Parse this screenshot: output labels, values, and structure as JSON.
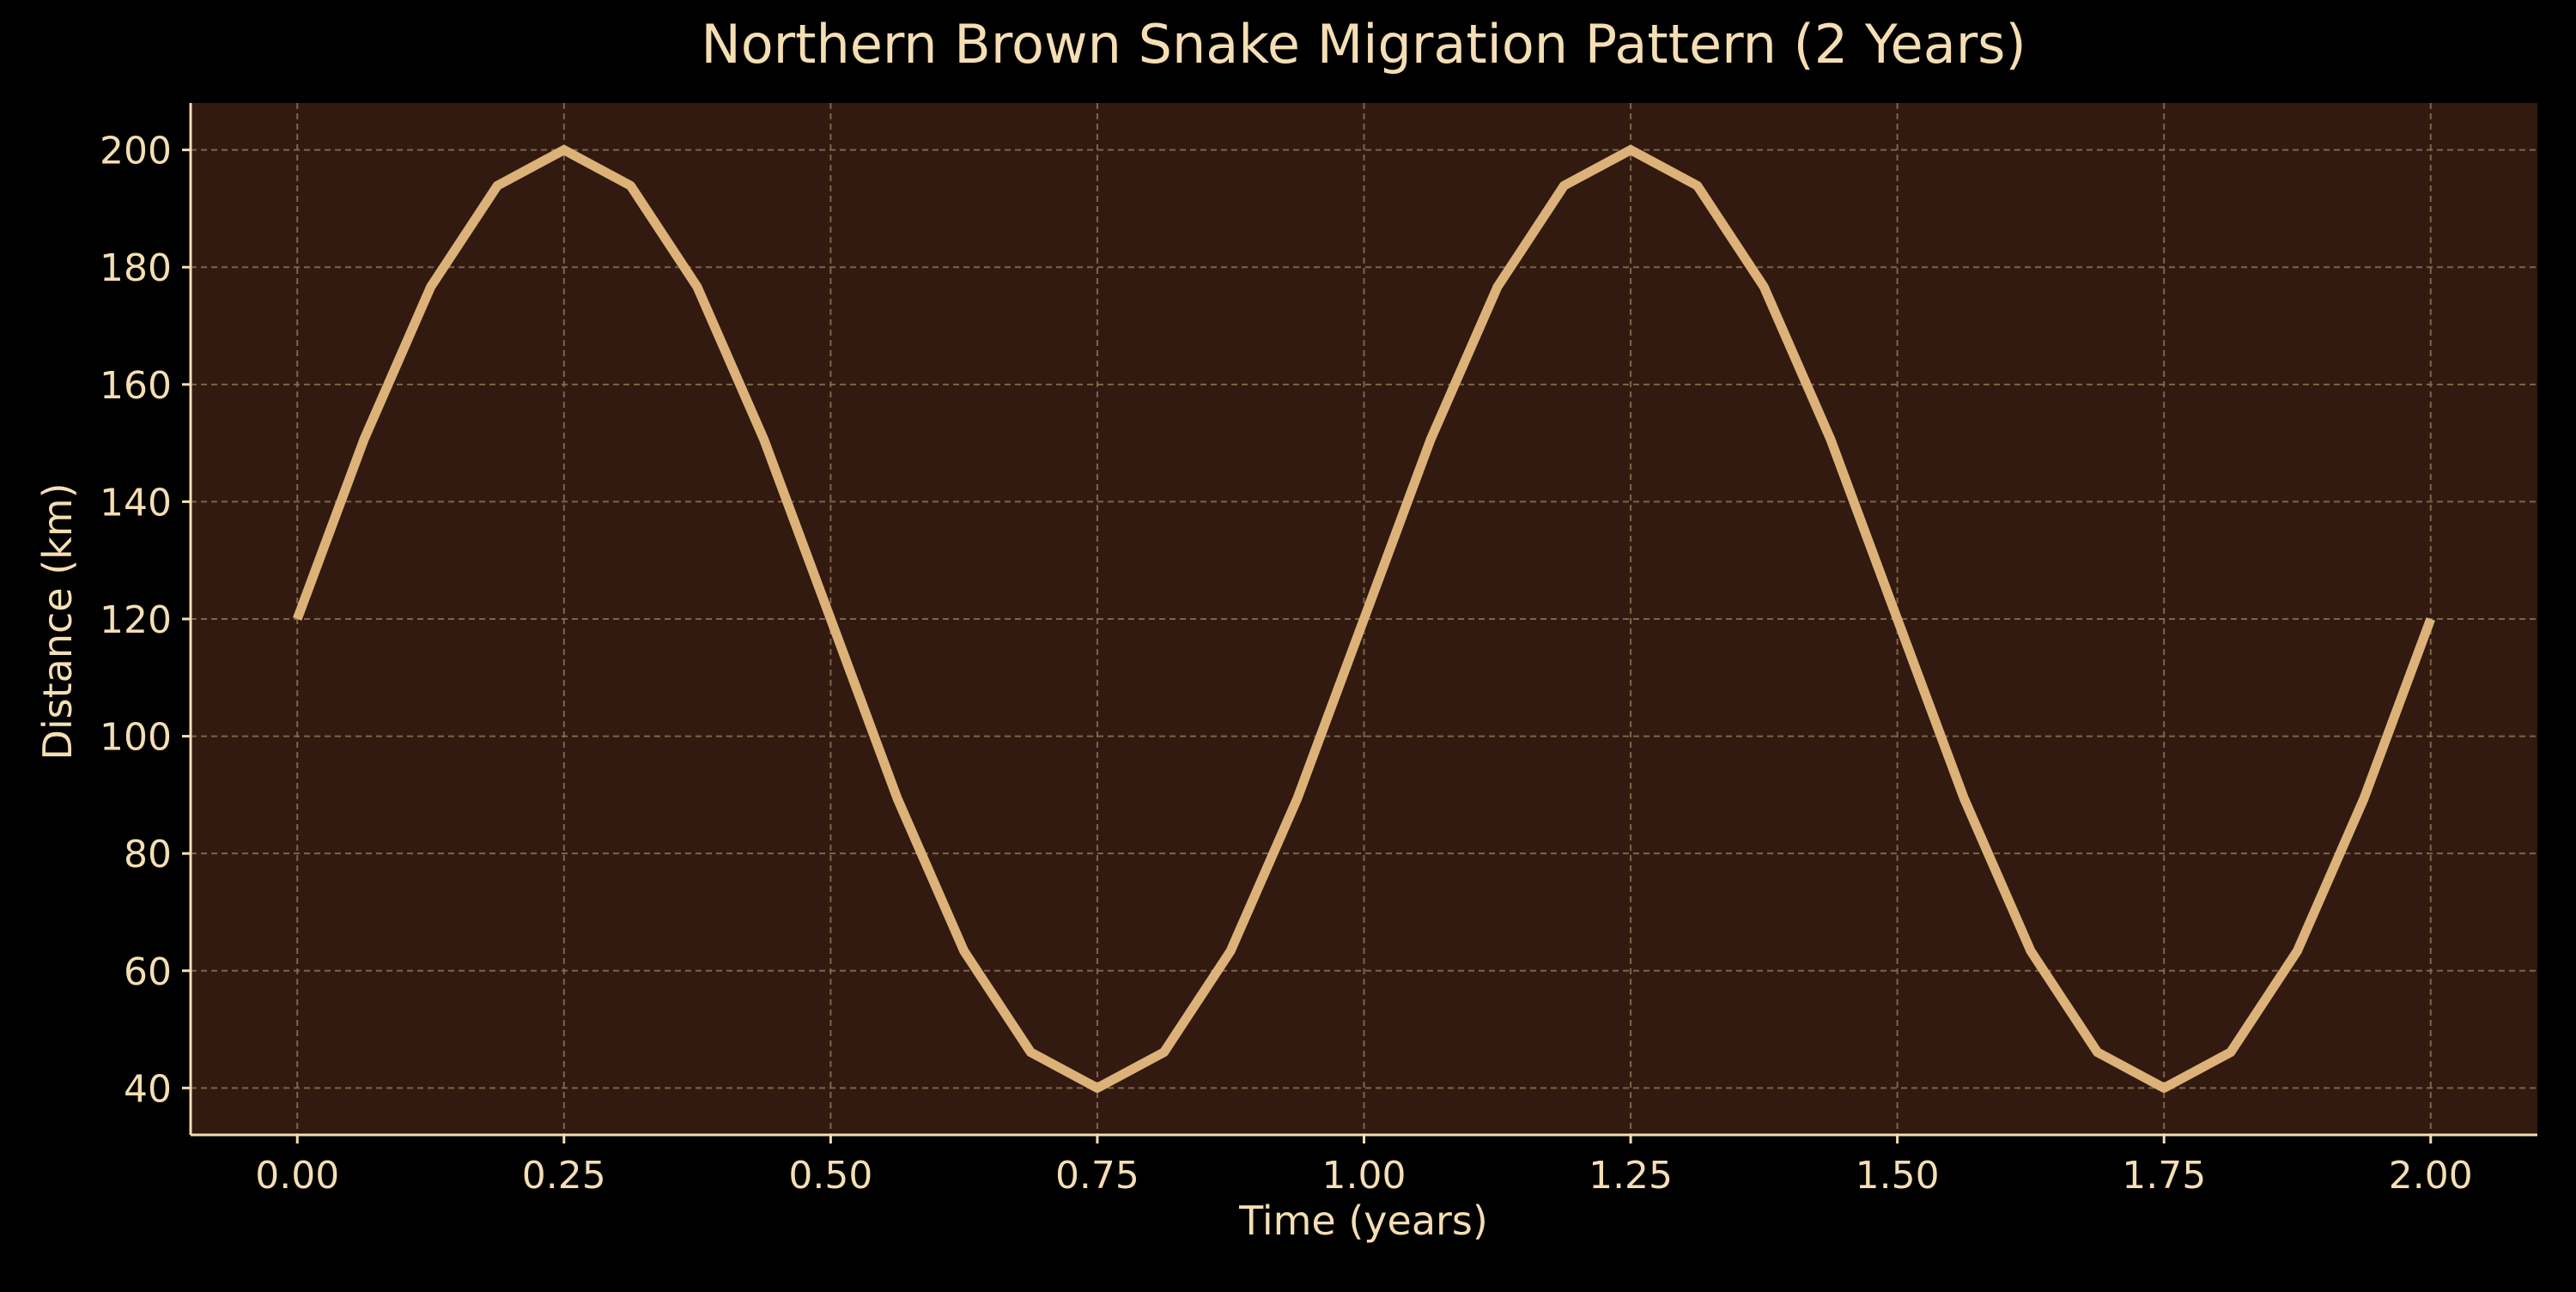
{
  "colors": {
    "figure_background": "#000000",
    "plot_background": "#321a10",
    "line": "#dcb279",
    "text": "#f5deb3",
    "grid": "#8a7353",
    "axis": "#f5deb3"
  },
  "chart_data": {
    "type": "line",
    "title": "Northern Brown Snake Migration Pattern (2 Years)",
    "xlabel": "Time (years)",
    "ylabel": "Distance (km)",
    "xlim": [
      -0.1,
      2.1
    ],
    "ylim": [
      32,
      208
    ],
    "x_ticks": [
      0,
      0.25,
      0.5,
      0.75,
      1.0,
      1.25,
      1.5,
      1.75,
      2.0
    ],
    "x_tick_labels": [
      "0.00",
      "0.25",
      "0.50",
      "0.75",
      "1.00",
      "1.25",
      "1.50",
      "1.75",
      "2.00"
    ],
    "y_ticks": [
      40,
      60,
      80,
      100,
      120,
      140,
      160,
      180,
      200
    ],
    "y_tick_labels": [
      "40",
      "60",
      "80",
      "100",
      "120",
      "140",
      "160",
      "180",
      "200"
    ],
    "grid": true,
    "grid_style": "dashed",
    "series": [
      {
        "x": [
          0.0,
          0.0625,
          0.125,
          0.1875,
          0.25,
          0.3125,
          0.375,
          0.4375,
          0.5,
          0.5625,
          0.625,
          0.6875,
          0.75,
          0.8125,
          0.875,
          0.9375,
          1.0,
          1.0625,
          1.125,
          1.1875,
          1.25,
          1.3125,
          1.375,
          1.4375,
          1.5,
          1.5625,
          1.625,
          1.6875,
          1.75,
          1.8125,
          1.875,
          1.9375,
          2.0
        ],
        "y": [
          120,
          150.6,
          176.6,
          193.9,
          200,
          193.9,
          176.6,
          150.6,
          120,
          89.4,
          63.4,
          46.1,
          40,
          46.1,
          63.4,
          89.4,
          120,
          150.6,
          176.6,
          193.9,
          200,
          193.9,
          176.6,
          150.6,
          120,
          89.4,
          63.4,
          46.1,
          40,
          46.1,
          63.4,
          89.4,
          120
        ]
      }
    ]
  }
}
